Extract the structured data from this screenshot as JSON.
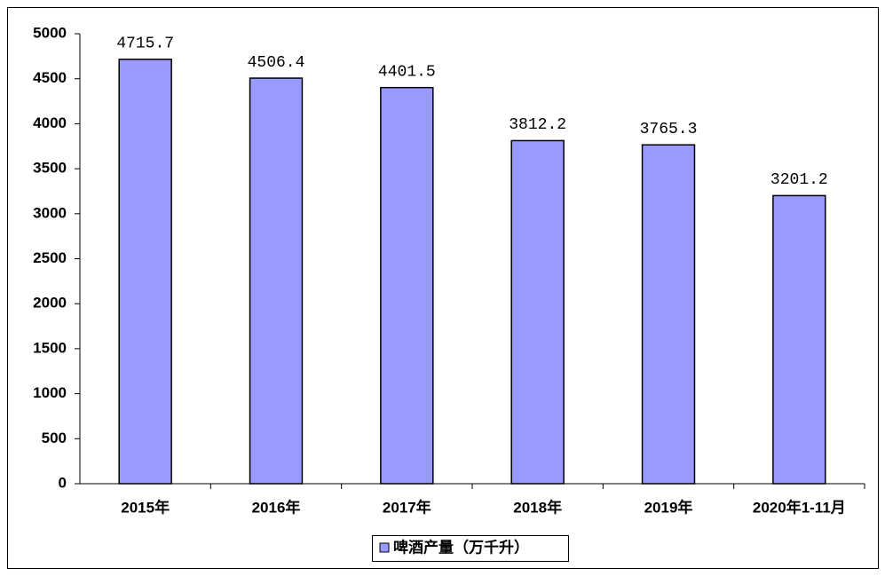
{
  "chart_data": {
    "type": "bar",
    "categories": [
      "2015年",
      "2016年",
      "2017年",
      "2018年",
      "2019年",
      "2020年1-11月"
    ],
    "series": [
      {
        "name": "啤酒产量（万千升）",
        "color": "#9999ff",
        "values": [
          4715.7,
          4506.4,
          4401.5,
          3812.2,
          3765.3,
          3201.2
        ]
      }
    ],
    "ylim": [
      0,
      5000
    ],
    "yticks": [
      0,
      500,
      1000,
      1500,
      2000,
      2500,
      3000,
      3500,
      4000,
      4500,
      5000
    ],
    "grid": false,
    "legend": "bottom"
  }
}
